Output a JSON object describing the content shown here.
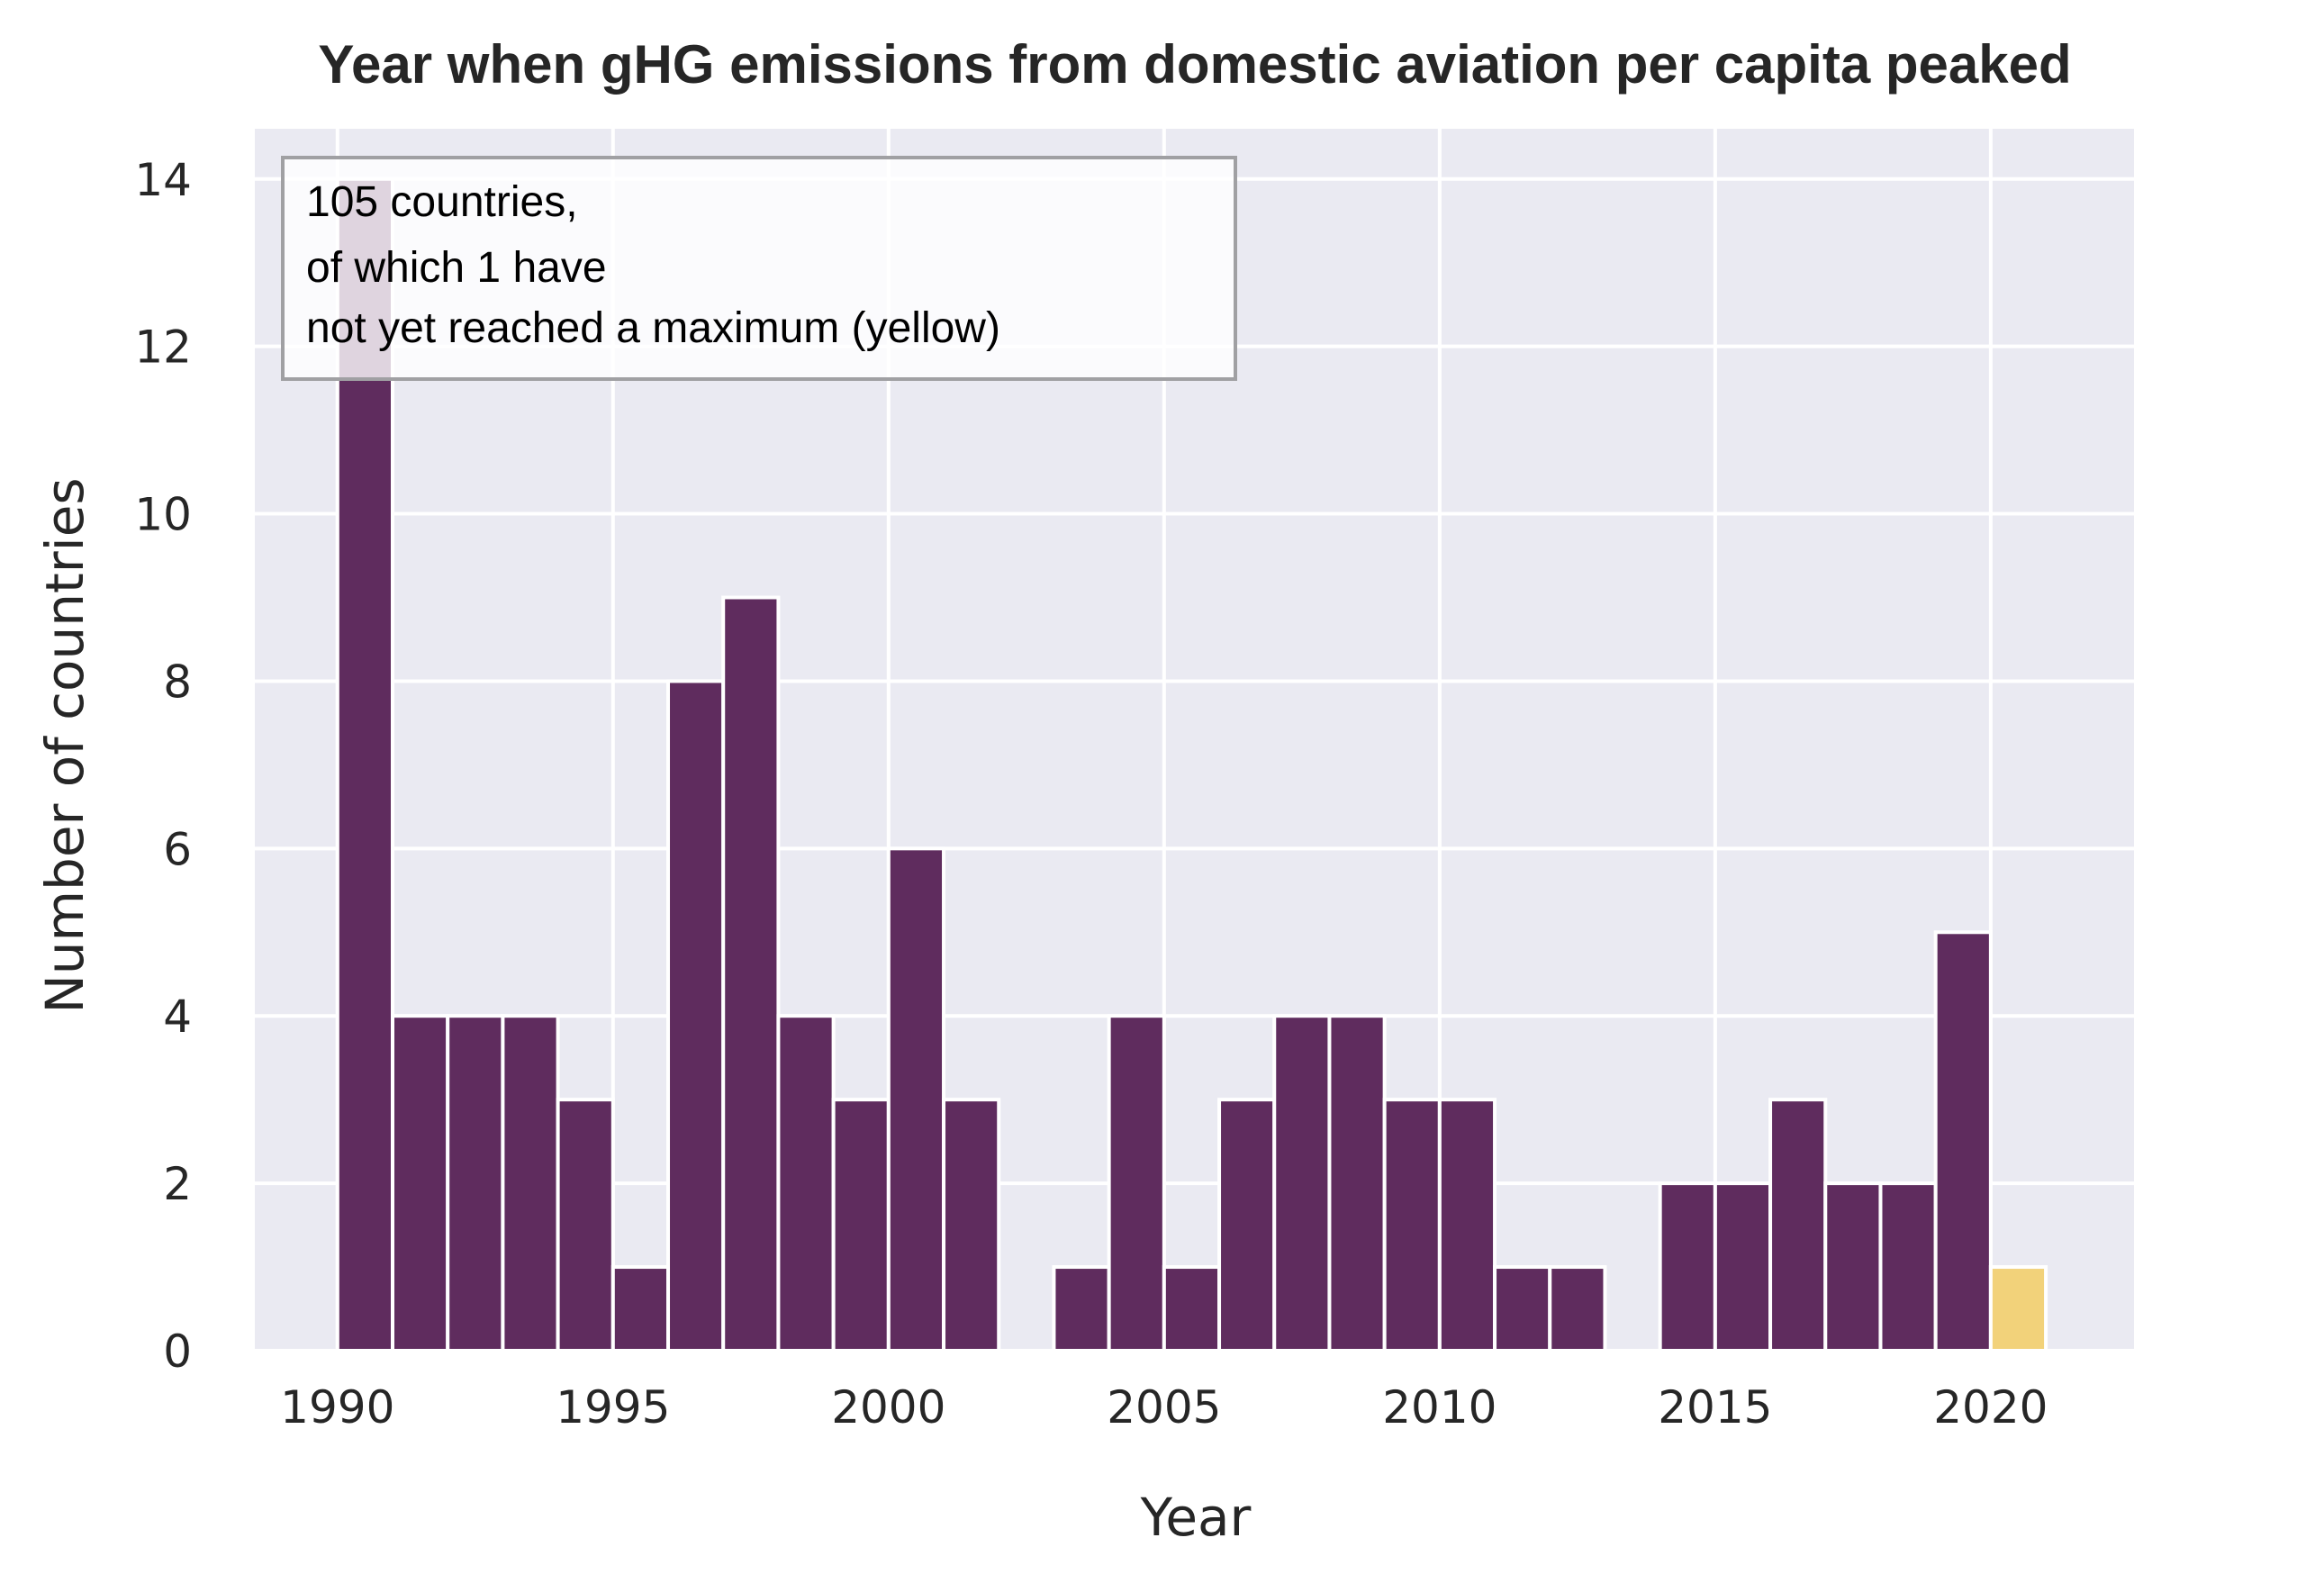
{
  "chart_data": {
    "type": "bar",
    "title": "Year when gHG emissions from domestic aviation per capita peaked",
    "xlabel": "Year",
    "ylabel": "Number of countries",
    "xlim": [
      1988.5,
      2022.6
    ],
    "ylim": [
      0,
      14.6
    ],
    "x_ticks": [
      1990,
      1995,
      2000,
      2005,
      2010,
      2015,
      2020
    ],
    "y_ticks": [
      0,
      2,
      4,
      6,
      8,
      10,
      12,
      14
    ],
    "grid": true,
    "bin_width": 1,
    "bars": [
      {
        "year": 1990,
        "count": 14,
        "reached_max": true
      },
      {
        "year": 1991,
        "count": 4,
        "reached_max": true
      },
      {
        "year": 1992,
        "count": 4,
        "reached_max": true
      },
      {
        "year": 1993,
        "count": 4,
        "reached_max": true
      },
      {
        "year": 1994,
        "count": 3,
        "reached_max": true
      },
      {
        "year": 1995,
        "count": 1,
        "reached_max": true
      },
      {
        "year": 1996,
        "count": 8,
        "reached_max": true
      },
      {
        "year": 1997,
        "count": 9,
        "reached_max": true
      },
      {
        "year": 1998,
        "count": 4,
        "reached_max": true
      },
      {
        "year": 1999,
        "count": 3,
        "reached_max": true
      },
      {
        "year": 2000,
        "count": 6,
        "reached_max": true
      },
      {
        "year": 2001,
        "count": 3,
        "reached_max": true
      },
      {
        "year": 2003,
        "count": 1,
        "reached_max": true
      },
      {
        "year": 2004,
        "count": 4,
        "reached_max": true
      },
      {
        "year": 2005,
        "count": 1,
        "reached_max": true
      },
      {
        "year": 2006,
        "count": 3,
        "reached_max": true
      },
      {
        "year": 2007,
        "count": 4,
        "reached_max": true
      },
      {
        "year": 2008,
        "count": 4,
        "reached_max": true
      },
      {
        "year": 2009,
        "count": 3,
        "reached_max": true
      },
      {
        "year": 2010,
        "count": 3,
        "reached_max": true
      },
      {
        "year": 2011,
        "count": 1,
        "reached_max": true
      },
      {
        "year": 2012,
        "count": 1,
        "reached_max": true
      },
      {
        "year": 2014,
        "count": 2,
        "reached_max": true
      },
      {
        "year": 2015,
        "count": 2,
        "reached_max": true
      },
      {
        "year": 2016,
        "count": 3,
        "reached_max": true
      },
      {
        "year": 2017,
        "count": 2,
        "reached_max": true
      },
      {
        "year": 2018,
        "count": 2,
        "reached_max": true
      },
      {
        "year": 2019,
        "count": 5,
        "reached_max": true
      },
      {
        "year": 2020,
        "count": 1,
        "reached_max": false
      }
    ],
    "legend_box": {
      "lines": [
        "105 countries,",
        "of which 1 have",
        "not yet reached a maximum (yellow)"
      ],
      "placement": "top-left"
    },
    "colors": {
      "reached": "#5f2c5e",
      "not_reached": "#f2d27a",
      "plot_background": "#eaeaf2",
      "grid": "#ffffff"
    }
  }
}
